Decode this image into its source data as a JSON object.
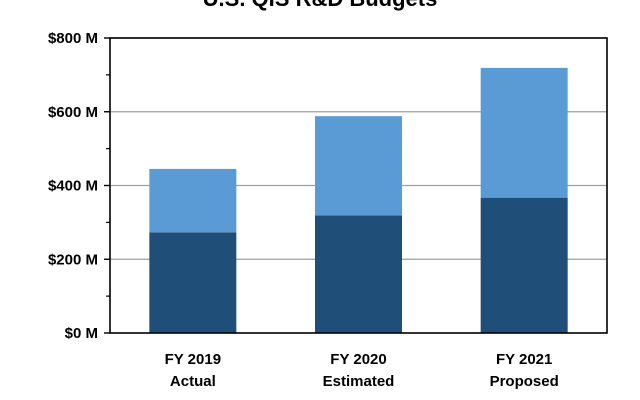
{
  "chart_data": {
    "type": "bar",
    "stacked": true,
    "title": "U.S. QIS R&D Budgets",
    "xlabel": "",
    "ylabel": "",
    "categories": [
      [
        "FY 2019",
        "Actual"
      ],
      [
        "FY 2020",
        "Estimated"
      ],
      [
        "FY 2021",
        "Proposed"
      ]
    ],
    "series": [
      {
        "values": [
          273,
          319,
          367
        ],
        "color": "#1f4e79"
      },
      {
        "values": [
          172,
          269,
          352
        ],
        "color": "#5b9bd5"
      }
    ],
    "ylim": [
      0,
      800
    ],
    "yticks": [
      {
        "value": 0,
        "label": "$0 M"
      },
      {
        "value": 200,
        "label": "$200 M"
      },
      {
        "value": 400,
        "label": "$400 M"
      },
      {
        "value": 600,
        "label": "$600 M"
      },
      {
        "value": 800,
        "label": "$800 M"
      }
    ],
    "minor_ticks": [
      100,
      300,
      500,
      700
    ],
    "grid": true,
    "legend": "none",
    "gridline_color": "#9e9e9e",
    "axis_color": "#000000"
  }
}
